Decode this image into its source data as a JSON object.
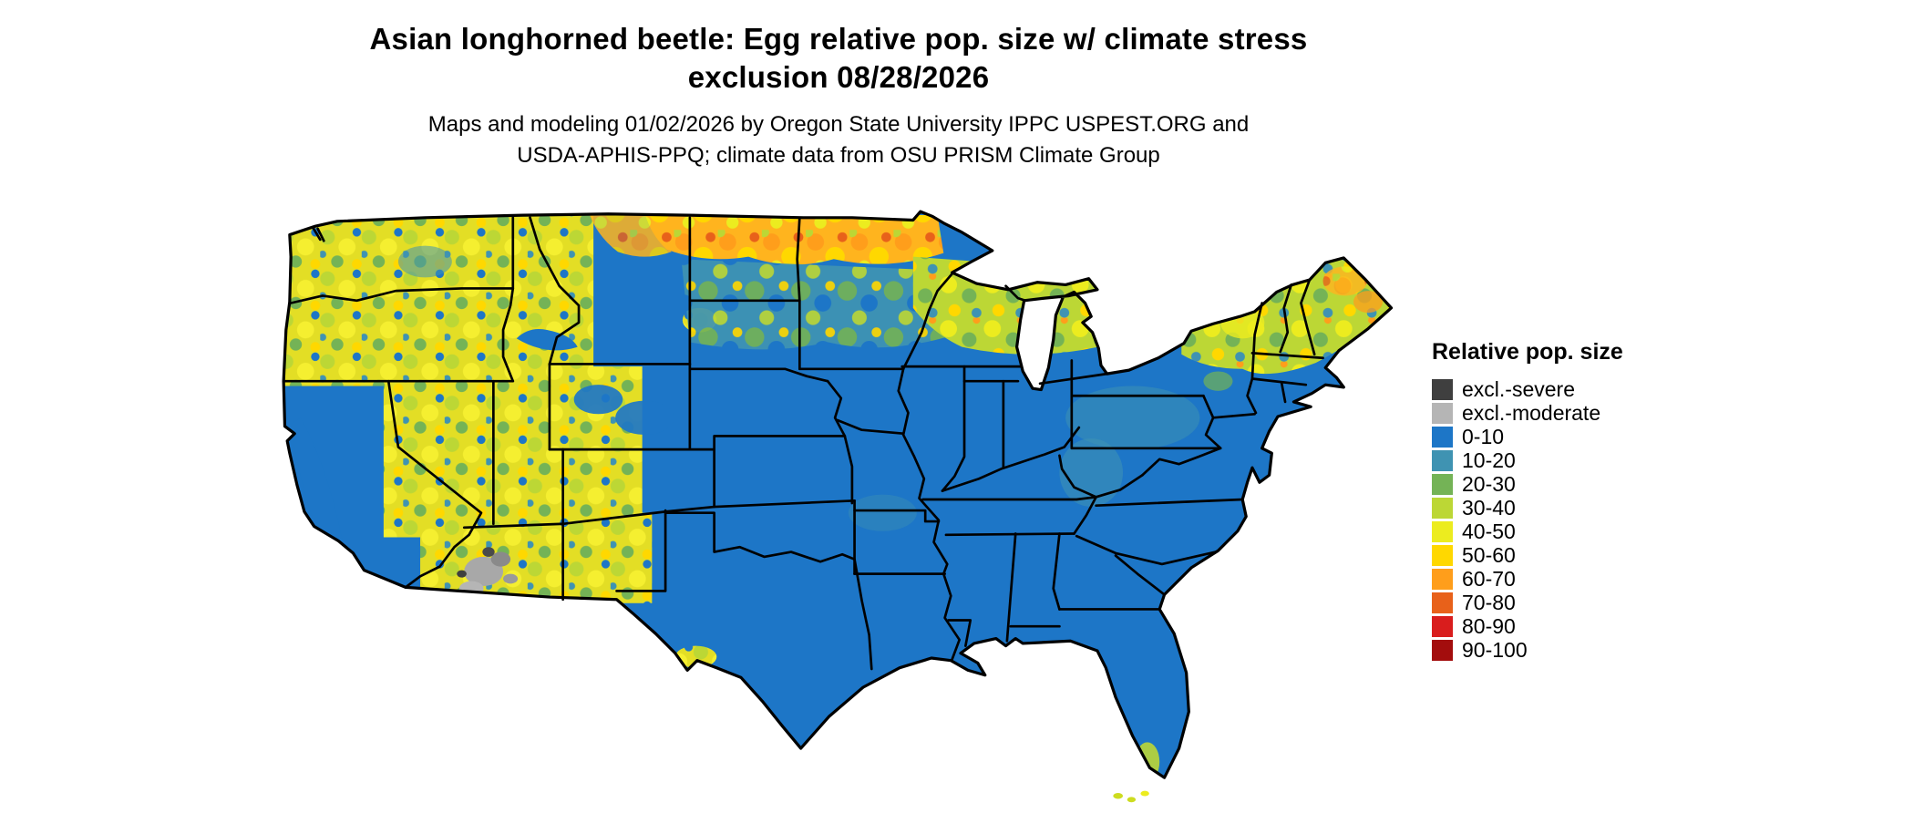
{
  "header": {
    "title_line1": "Asian longhorned beetle: Egg relative pop. size w/ climate stress",
    "title_line2": "exclusion 08/28/2026",
    "subtitle_line1": "Maps and modeling 01/02/2026 by Oregon State University IPPC USPEST.ORG and",
    "subtitle_line2": "USDA-APHIS-PPQ; climate data from OSU PRISM Climate Group"
  },
  "legend": {
    "title": "Relative pop. size",
    "items": [
      {
        "label": "excl.-severe",
        "color": "#3f3f3f"
      },
      {
        "label": "excl.-moderate",
        "color": "#b5b5b5"
      },
      {
        "label": "0-10",
        "color": "#1d76c7"
      },
      {
        "label": "10-20",
        "color": "#3f93b2"
      },
      {
        "label": "20-30",
        "color": "#74b356"
      },
      {
        "label": "30-40",
        "color": "#bcd735"
      },
      {
        "label": "40-50",
        "color": "#ecec1f"
      },
      {
        "label": "50-60",
        "color": "#ffd800"
      },
      {
        "label": "60-70",
        "color": "#ff9e1b"
      },
      {
        "label": "70-80",
        "color": "#e8611a"
      },
      {
        "label": "80-90",
        "color": "#d91d1d"
      },
      {
        "label": "90-100",
        "color": "#a30d0d"
      }
    ]
  },
  "map": {
    "base_color": "#1d76c7"
  }
}
